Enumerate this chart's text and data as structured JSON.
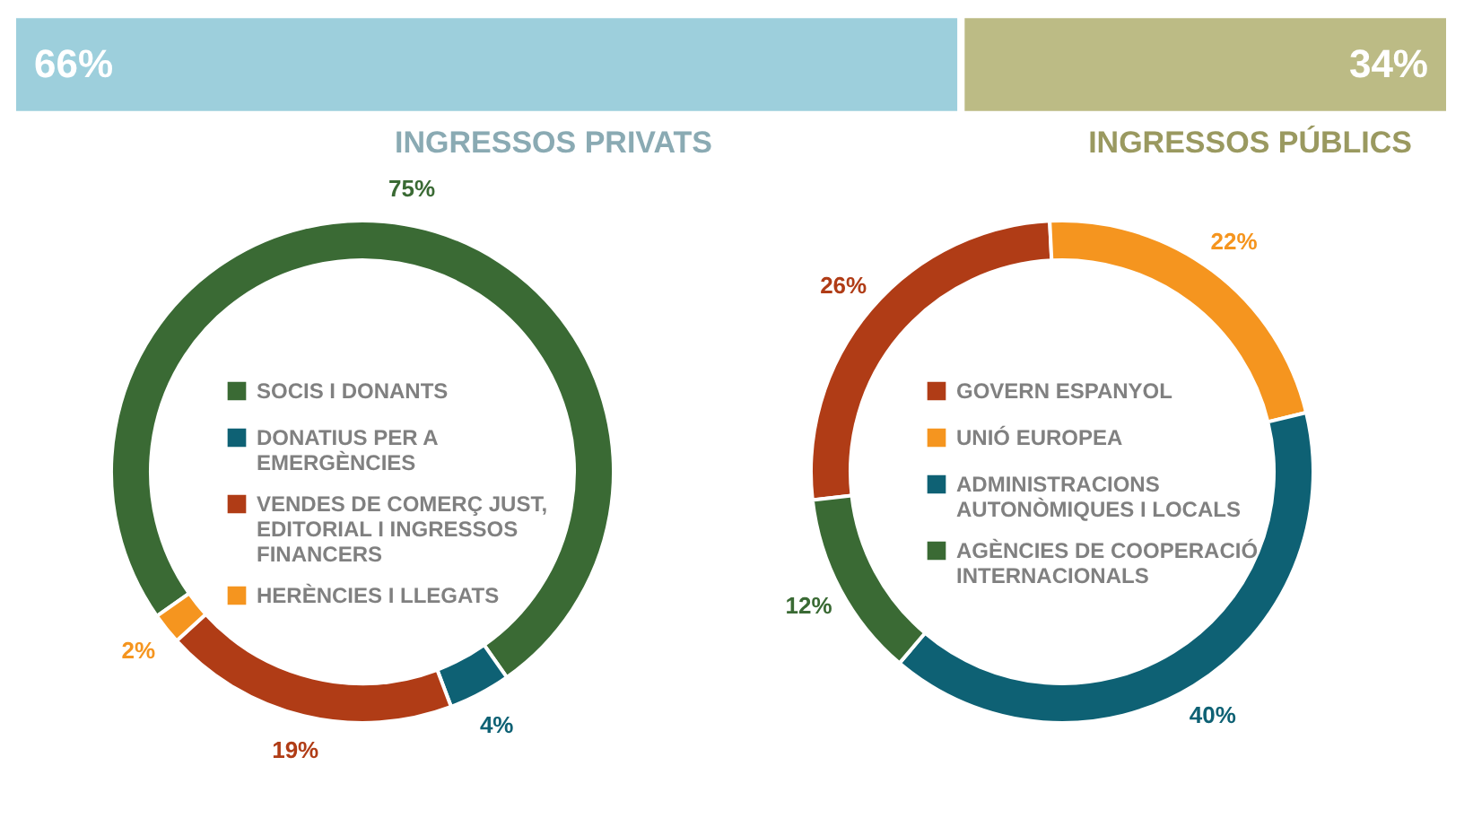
{
  "chart_data": [
    {
      "type": "bar",
      "orientation": "horizontal",
      "stacked": true,
      "tick_labels": false,
      "categories": [
        null
      ],
      "legend": false,
      "series": [
        {
          "color": "#9dcfdc",
          "values": [
            66
          ],
          "value_labels": [
            "66%"
          ]
        },
        {
          "color": "#bcbb85",
          "values": [
            34
          ],
          "value_labels": [
            "34%"
          ]
        }
      ]
    },
    {
      "type": "donut",
      "title": "INGRESSOS PRIVATS",
      "legend": "center",
      "categories": [
        "SOCIS I DONANTS",
        "DONATIUS PER A EMERGÈNCIES",
        "VENDES DE COMERÇ JUST, EDITORIAL I INGRESSOS FINANCERS",
        "HERÈNCIES I LLEGATS"
      ],
      "values": [
        75,
        4,
        19,
        2
      ],
      "value_labels": [
        "75%",
        "4%",
        "19%",
        "2%"
      ],
      "colors": [
        "#3a6a34",
        "#0e6174",
        "#b03c16",
        "#f5951f"
      ]
    },
    {
      "type": "donut",
      "title": "INGRESSOS PÚBLICS",
      "legend": "center",
      "categories": [
        "GOVERN ESPANYOL",
        "UNIÓ EUROPEA",
        "ADMINISTRACIONS AUTONÒMIQUES I LOCALS",
        "AGÈNCIES DE COOPERACIÓ INTERNACIONALS"
      ],
      "values": [
        26,
        22,
        40,
        12
      ],
      "value_labels": [
        "26%",
        "22%",
        "40%",
        "12%"
      ],
      "colors": [
        "#b03c16",
        "#f5951f",
        "#0e6174",
        "#3a6a34"
      ]
    }
  ]
}
